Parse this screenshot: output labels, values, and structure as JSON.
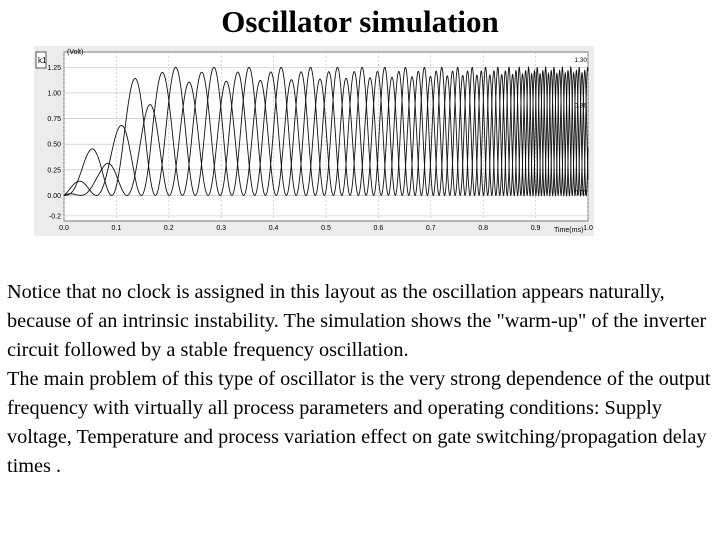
{
  "slide": {
    "title": "Oscillator simulation",
    "paragraphs": [
      "Notice that no clock is assigned in this layout as the oscillation appears naturally, because of an intrinsic instability. The simulation shows the \"warm-up\" of the inverter circuit followed by a stable frequency oscillation.",
      "The main problem of this type of oscillator is the very strong dependence of the output frequency with virtually all process parameters and operating conditions: Supply voltage, Temperature and process variation effect on gate switching/propagation delay times ."
    ]
  },
  "chart_data": {
    "type": "line",
    "ylabel": "(Volt)",
    "xlabel": "Time(ms)",
    "y_ticks": [
      "1.25",
      "1.00",
      "0.75",
      "0.50",
      "0.25",
      "0.00",
      "-0.2"
    ],
    "x_ticks": [
      "0.0",
      "0.1",
      "0.2",
      "0.3",
      "0.4",
      "0.5",
      "0.6",
      "0.7",
      "0.8",
      "0.9",
      "1.0"
    ],
    "ylim": [
      -0.25,
      1.4
    ],
    "xlim": [
      0.0,
      1.0
    ],
    "right_labels": [
      "1.30",
      "0.86",
      "0.01"
    ],
    "axis_unit_box": "k1",
    "grid": true,
    "series": [
      {
        "envelope": [
          [
            0,
            0
          ],
          [
            0.05,
            0.45
          ],
          [
            0.1,
            0.9
          ],
          [
            0.15,
            1.25
          ],
          [
            1.0,
            1.25
          ]
        ],
        "start_period": 0.095,
        "end_period": 0.016,
        "phase": 0.0
      },
      {
        "envelope": [
          [
            0,
            0
          ],
          [
            0.06,
            0.35
          ],
          [
            0.11,
            0.7
          ],
          [
            0.17,
            1.2
          ],
          [
            1.0,
            1.22
          ]
        ],
        "start_period": 0.095,
        "end_period": 0.016,
        "phase": 0.33
      },
      {
        "envelope": [
          [
            0,
            0
          ],
          [
            0.07,
            0.25
          ],
          [
            0.12,
            0.55
          ],
          [
            0.19,
            1.1
          ],
          [
            1.0,
            1.2
          ]
        ],
        "start_period": 0.095,
        "end_period": 0.016,
        "phase": 0.66
      }
    ]
  }
}
